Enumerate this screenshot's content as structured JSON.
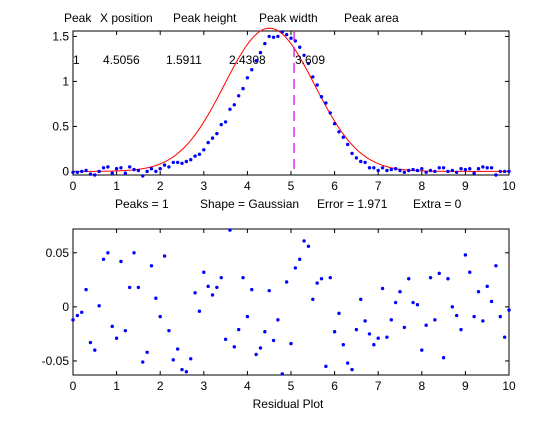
{
  "chart_data": [
    {
      "type": "scatter",
      "title": "",
      "header_labels": [
        "Peak",
        "X position",
        "Peak height",
        "Peak width",
        "Peak area"
      ],
      "results_row": [
        "1",
        "4.5056",
        "1.5911",
        "2.4308",
        "3.609"
      ],
      "footer": {
        "peaks": "Peaks = 1",
        "shape": "Shape = Gaussian",
        "error": "Error = 1.971",
        "extra": "Extra = 0"
      },
      "xlim": [
        0,
        10
      ],
      "ylim": [
        -0.04,
        1.56
      ],
      "xticks": [
        "0",
        "1",
        "2",
        "3",
        "4",
        "5",
        "6",
        "7",
        "8",
        "9",
        "10"
      ],
      "yticks": [
        "0",
        "0.5",
        "1",
        "1.5"
      ],
      "grid": false,
      "fit": {
        "model": "gaussian",
        "position": 4.5056,
        "height": 1.5911,
        "width": 2.4308,
        "color": "#ff0000"
      },
      "marker_x": 5.07,
      "marker_color": "#cc00cc",
      "points_color": "#0000ff",
      "series": [
        {
          "x": [
            0.0,
            0.1,
            0.2,
            0.3,
            0.4,
            0.5,
            0.6,
            0.7,
            0.8,
            0.9,
            1.0,
            1.1,
            1.2,
            1.3,
            1.4,
            1.5,
            1.6,
            1.7,
            1.8,
            1.9,
            2.0,
            2.1,
            2.2,
            2.3,
            2.4,
            2.5,
            2.6,
            2.7,
            2.8,
            2.9,
            3.0,
            3.1,
            3.2,
            3.3,
            3.4,
            3.5,
            3.6,
            3.7,
            3.8,
            3.9,
            4.0,
            4.1,
            4.2,
            4.3,
            4.4,
            4.5,
            4.6,
            4.7,
            4.8,
            4.9,
            5.0,
            5.1,
            5.2,
            5.3,
            5.4,
            5.5,
            5.6,
            5.7,
            5.8,
            5.9,
            6.0,
            6.1,
            6.2,
            6.3,
            6.4,
            6.5,
            6.6,
            6.7,
            6.8,
            6.9,
            7.0,
            7.1,
            7.2,
            7.3,
            7.4,
            7.5,
            7.6,
            7.7,
            7.8,
            7.9,
            8.0,
            8.1,
            8.2,
            8.3,
            8.4,
            8.5,
            8.6,
            8.7,
            8.8,
            8.9,
            9.0,
            9.1,
            9.2,
            9.3,
            9.4,
            9.5,
            9.6,
            9.7,
            9.8,
            9.9,
            10.0
          ],
          "y": [
            -0.01,
            -0.01,
            0.0,
            0.01,
            -0.03,
            -0.04,
            0.0,
            0.04,
            0.05,
            -0.02,
            0.03,
            0.04,
            -0.02,
            0.05,
            0.02,
            0.01,
            -0.05,
            0.0,
            0.03,
            0.0,
            0.03,
            0.07,
            0.05,
            0.1,
            0.1,
            0.09,
            0.11,
            0.13,
            0.17,
            0.19,
            0.24,
            0.32,
            0.37,
            0.42,
            0.52,
            0.55,
            0.69,
            0.74,
            0.84,
            0.92,
            1.04,
            1.13,
            1.23,
            1.32,
            1.42,
            1.5,
            1.49,
            1.5,
            1.55,
            1.52,
            1.48,
            1.45,
            1.38,
            1.29,
            1.2,
            1.05,
            0.96,
            0.83,
            0.76,
            0.65,
            0.53,
            0.44,
            0.38,
            0.3,
            0.2,
            0.15,
            0.11,
            0.1,
            0.04,
            0.04,
            0.01,
            0.04,
            0.01,
            0.02,
            0.03,
            0.01,
            -0.01,
            0.01,
            0.02,
            0.01,
            0.03,
            -0.01,
            0.01,
            0.0,
            0.04,
            0.04,
            0.0,
            0.01,
            -0.01,
            0.03,
            0.02,
            0.03,
            -0.02,
            0.03,
            0.05,
            0.04,
            0.04,
            -0.04,
            0.0,
            0.0,
            0.0
          ]
        }
      ]
    },
    {
      "type": "scatter",
      "title": "",
      "xlabel": "Residual Plot",
      "xlim": [
        0,
        10
      ],
      "ylim": [
        -0.063,
        0.072
      ],
      "xticks": [
        "0",
        "1",
        "2",
        "3",
        "4",
        "5",
        "6",
        "7",
        "8",
        "9",
        "10"
      ],
      "yticks": [
        "-0.05",
        "0",
        "0.05"
      ],
      "ytick_values": [
        -0.05,
        0,
        0.05
      ],
      "grid": false,
      "points_color": "#0000ff",
      "series": [
        {
          "x": [
            0.0,
            0.1,
            0.2,
            0.3,
            0.4,
            0.5,
            0.6,
            0.7,
            0.8,
            0.9,
            1.0,
            1.1,
            1.2,
            1.3,
            1.4,
            1.5,
            1.6,
            1.7,
            1.8,
            1.9,
            2.0,
            2.1,
            2.2,
            2.3,
            2.4,
            2.5,
            2.6,
            2.7,
            2.8,
            2.9,
            3.0,
            3.1,
            3.2,
            3.3,
            3.4,
            3.5,
            3.6,
            3.7,
            3.8,
            3.9,
            4.0,
            4.1,
            4.2,
            4.3,
            4.4,
            4.5,
            4.6,
            4.7,
            4.8,
            4.9,
            5.0,
            5.1,
            5.2,
            5.3,
            5.4,
            5.5,
            5.6,
            5.7,
            5.8,
            5.9,
            6.0,
            6.1,
            6.2,
            6.3,
            6.4,
            6.5,
            6.6,
            6.7,
            6.8,
            6.9,
            7.0,
            7.1,
            7.2,
            7.3,
            7.4,
            7.5,
            7.6,
            7.7,
            7.8,
            7.9,
            8.0,
            8.1,
            8.2,
            8.3,
            8.4,
            8.5,
            8.6,
            8.7,
            8.8,
            8.9,
            9.0,
            9.1,
            9.2,
            9.3,
            9.4,
            9.5,
            9.6,
            9.7,
            9.8,
            9.9,
            10.0
          ],
          "y": [
            -0.012,
            -0.008,
            -0.005,
            0.016,
            -0.033,
            -0.04,
            0.001,
            0.044,
            0.05,
            -0.018,
            -0.029,
            0.042,
            -0.022,
            0.018,
            0.05,
            0.018,
            -0.051,
            -0.042,
            0.038,
            0.008,
            -0.009,
            0.047,
            -0.022,
            -0.049,
            -0.039,
            -0.058,
            -0.06,
            -0.048,
            0.013,
            -0.004,
            0.032,
            0.019,
            0.011,
            0.018,
            0.027,
            -0.03,
            0.071,
            -0.037,
            -0.021,
            0.027,
            -0.009,
            0.016,
            -0.044,
            -0.038,
            -0.023,
            0.015,
            -0.031,
            -0.012,
            -0.062,
            0.023,
            -0.034,
            0.036,
            0.044,
            0.061,
            0.056,
            0.007,
            0.022,
            0.026,
            -0.055,
            0.027,
            -0.023,
            -0.006,
            -0.035,
            -0.052,
            -0.058,
            -0.021,
            0.007,
            -0.013,
            -0.025,
            -0.035,
            -0.029,
            0.017,
            -0.028,
            -0.012,
            0.004,
            0.014,
            -0.019,
            0.026,
            0.004,
            0.002,
            -0.04,
            -0.017,
            0.027,
            -0.012,
            0.031,
            -0.047,
            0.026,
            0.0,
            -0.008,
            -0.021,
            0.048,
            0.032,
            -0.009,
            0.014,
            -0.013,
            0.019,
            0.005,
            0.038,
            -0.009,
            -0.028,
            -0.003
          ]
        }
      ]
    }
  ]
}
